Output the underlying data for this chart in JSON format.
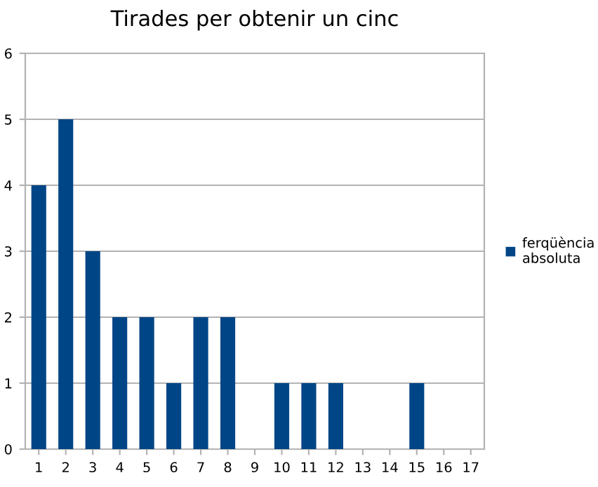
{
  "chart_data": {
    "type": "bar",
    "title": "Tirades per obtenir un cinc",
    "categories": [
      "1",
      "2",
      "3",
      "4",
      "5",
      "6",
      "7",
      "8",
      "9",
      "10",
      "11",
      "12",
      "13",
      "14",
      "15",
      "16",
      "17"
    ],
    "series": [
      {
        "name": "ferqüència absoluta",
        "color": "#004586",
        "values": [
          4,
          5,
          3,
          2,
          2,
          1,
          2,
          2,
          0,
          1,
          1,
          1,
          0,
          0,
          1,
          0,
          0
        ]
      }
    ],
    "ylim": [
      0,
      6
    ],
    "yticks": [
      0,
      1,
      2,
      3,
      4,
      5,
      6
    ],
    "grid": "y",
    "legend": "right"
  }
}
